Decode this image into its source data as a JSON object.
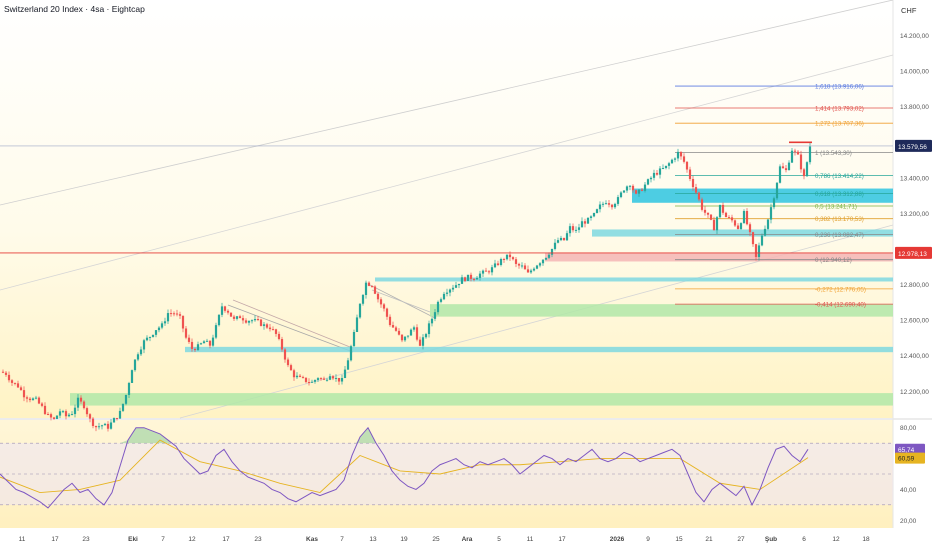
{
  "header": {
    "title": "Switzerland 20 Index · 4sa · Eightcap",
    "currency": "CHF"
  },
  "price_panel": {
    "y_ticks": [
      "14.200,00",
      "14.000,00",
      "13.800,00",
      "13.600,00",
      "13.400,00",
      "13.200,00",
      "13.000,00",
      "12.800,00",
      "12.600,00",
      "12.400,00",
      "12.200,00"
    ],
    "last_price_label": "13.579,56",
    "red_line_label": "12.978,13",
    "fib_levels": [
      {
        "ratio": "1,618",
        "value": "13.916,06",
        "color": "#5b7be0",
        "text": "1,618 (13.916,06)"
      },
      {
        "ratio": "1,414",
        "value": "13.793,02",
        "color": "#e0504a",
        "text": "1,414 (13.793,02)"
      },
      {
        "ratio": "1,272",
        "value": "13.707,36",
        "color": "#f0a030",
        "text": "1,272 (13.707,36)"
      },
      {
        "ratio": "1",
        "value": "13.543,30",
        "color": "#888888",
        "text": "1 (13.543,30)"
      },
      {
        "ratio": "0,786",
        "value": "13.414,22",
        "color": "#26a69a",
        "text": "0,786 (13.414,22)"
      },
      {
        "ratio": "0,618",
        "value": "13.312,88",
        "color": "#26a69a",
        "text": "0,618 (13.312,88)"
      },
      {
        "ratio": "0,5",
        "value": "13.241,71",
        "color": "#7cb342",
        "text": "0,5 (13.241,71)"
      },
      {
        "ratio": "0,382",
        "value": "13.170,53",
        "color": "#e0a030",
        "text": "0,382 (13.170,53)"
      },
      {
        "ratio": "0,236",
        "value": "13.082,47",
        "color": "#888888",
        "text": "0,236 (13.082,47)"
      },
      {
        "ratio": "0",
        "value": "12.940,12",
        "color": "#888888",
        "text": "0 (12.940,12)"
      },
      {
        "ratio": "-0,272",
        "value": "12.776,05",
        "color": "#f0a030",
        "text": "-0,272 (12.776,05)"
      },
      {
        "ratio": "-0,414",
        "value": "12.690,40",
        "color": "#e0504a",
        "text": "-0,414 (12.690,40)"
      }
    ]
  },
  "rsi_panel": {
    "y_ticks": [
      "80,00",
      "60,00",
      "40,00",
      "20,00"
    ],
    "rsi_value": "65,74",
    "ma_value": "60,59"
  },
  "x_axis": {
    "labels": [
      "11",
      "17",
      "23",
      "Eki",
      "7",
      "12",
      "17",
      "23",
      "Kas",
      "7",
      "13",
      "19",
      "25",
      "Ara",
      "5",
      "11",
      "17",
      "2026",
      "9",
      "15",
      "21",
      "27",
      "Şub",
      "6",
      "12",
      "18"
    ]
  },
  "colors": {
    "up": "#26a69a",
    "down": "#ef5350",
    "rsi": "#7e57c2",
    "rsi_ma": "#e6b422",
    "support_zone": "#b2e8a8",
    "teal_zone": "#7fd8e0",
    "cyan_zone": "#2ec4e0",
    "red_line": "#e53935"
  },
  "chart_data": [
    {
      "type": "candlestick",
      "title": "Switzerland 20 Index · 4sa · Eightcap",
      "currency": "CHF",
      "ylim": [
        12050,
        14400
      ],
      "x_labels": [
        "11",
        "17",
        "23",
        "Eki",
        "7",
        "12",
        "17",
        "23",
        "Kas",
        "7",
        "13",
        "19",
        "25",
        "Ara",
        "5",
        "11",
        "17",
        "2026",
        "9",
        "15",
        "21",
        "27",
        "Şub",
        "6",
        "12",
        "18"
      ],
      "price_path": [
        [
          0,
          12310
        ],
        [
          6,
          12300
        ],
        [
          12,
          12250
        ],
        [
          18,
          12230
        ],
        [
          24,
          12180
        ],
        [
          30,
          12160
        ],
        [
          36,
          12150
        ],
        [
          42,
          12110
        ],
        [
          48,
          12060
        ],
        [
          54,
          12040
        ],
        [
          60,
          12090
        ],
        [
          66,
          12060
        ],
        [
          72,
          12080
        ],
        [
          78,
          12150
        ],
        [
          84,
          12120
        ],
        [
          90,
          12040
        ],
        [
          96,
          12000
        ],
        [
          102,
          12010
        ],
        [
          108,
          12000
        ],
        [
          114,
          12040
        ],
        [
          120,
          12080
        ],
        [
          126,
          12180
        ],
        [
          132,
          12330
        ],
        [
          138,
          12420
        ],
        [
          144,
          12480
        ],
        [
          150,
          12510
        ],
        [
          156,
          12550
        ],
        [
          162,
          12570
        ],
        [
          168,
          12640
        ],
        [
          174,
          12640
        ],
        [
          180,
          12610
        ],
        [
          186,
          12500
        ],
        [
          192,
          12440
        ],
        [
          198,
          12450
        ],
        [
          204,
          12480
        ],
        [
          210,
          12460
        ],
        [
          216,
          12560
        ],
        [
          222,
          12680
        ],
        [
          228,
          12650
        ],
        [
          234,
          12600
        ],
        [
          240,
          12620
        ],
        [
          246,
          12600
        ],
        [
          252,
          12600
        ],
        [
          258,
          12590
        ],
        [
          264,
          12570
        ],
        [
          270,
          12560
        ],
        [
          276,
          12520
        ],
        [
          282,
          12440
        ],
        [
          288,
          12340
        ],
        [
          294,
          12290
        ],
        [
          300,
          12270
        ],
        [
          306,
          12260
        ],
        [
          312,
          12250
        ],
        [
          318,
          12280
        ],
        [
          324,
          12260
        ],
        [
          330,
          12300
        ],
        [
          336,
          12270
        ],
        [
          342,
          12260
        ],
        [
          348,
          12380
        ],
        [
          354,
          12520
        ],
        [
          360,
          12700
        ],
        [
          366,
          12810
        ],
        [
          372,
          12800
        ],
        [
          378,
          12720
        ],
        [
          384,
          12660
        ],
        [
          390,
          12580
        ],
        [
          396,
          12540
        ],
        [
          402,
          12480
        ],
        [
          408,
          12520
        ],
        [
          414,
          12560
        ],
        [
          420,
          12450
        ],
        [
          426,
          12530
        ],
        [
          432,
          12610
        ],
        [
          438,
          12700
        ],
        [
          444,
          12760
        ],
        [
          450,
          12780
        ],
        [
          456,
          12800
        ],
        [
          462,
          12830
        ],
        [
          468,
          12840
        ],
        [
          474,
          12840
        ],
        [
          480,
          12860
        ],
        [
          486,
          12870
        ],
        [
          492,
          12890
        ],
        [
          498,
          12920
        ],
        [
          504,
          12950
        ],
        [
          510,
          12960
        ],
        [
          516,
          12910
        ],
        [
          522,
          12900
        ],
        [
          528,
          12860
        ],
        [
          534,
          12900
        ],
        [
          540,
          12930
        ],
        [
          546,
          12960
        ],
        [
          552,
          13000
        ],
        [
          558,
          13050
        ],
        [
          564,
          13050
        ],
        [
          570,
          13120
        ],
        [
          576,
          13100
        ],
        [
          582,
          13150
        ],
        [
          588,
          13160
        ],
        [
          594,
          13190
        ],
        [
          600,
          13240
        ],
        [
          606,
          13270
        ],
        [
          612,
          13250
        ],
        [
          618,
          13280
        ],
        [
          624,
          13340
        ],
        [
          630,
          13370
        ],
        [
          636,
          13300
        ],
        [
          642,
          13340
        ],
        [
          648,
          13380
        ],
        [
          654,
          13420
        ],
        [
          660,
          13440
        ],
        [
          666,
          13460
        ],
        [
          672,
          13500
        ],
        [
          678,
          13540
        ],
        [
          684,
          13490
        ],
        [
          690,
          13400
        ],
        [
          696,
          13320
        ],
        [
          702,
          13230
        ],
        [
          708,
          13180
        ],
        [
          714,
          13120
        ],
        [
          720,
          13240
        ],
        [
          726,
          13180
        ],
        [
          732,
          13160
        ],
        [
          738,
          13120
        ],
        [
          744,
          13200
        ],
        [
          750,
          13080
        ],
        [
          756,
          12950
        ],
        [
          762,
          13080
        ],
        [
          768,
          13170
        ],
        [
          774,
          13300
        ],
        [
          780,
          13460
        ],
        [
          786,
          13440
        ],
        [
          792,
          13560
        ],
        [
          798,
          13520
        ],
        [
          804,
          13400
        ],
        [
          810,
          13579
        ]
      ],
      "overlays": {
        "last_price": 13579.56,
        "red_horizontal_line": 12978.13,
        "zones": [
          {
            "from": 13260,
            "to": 13340,
            "color": "cyan"
          },
          {
            "from": 13070,
            "to": 13110,
            "color": "teal"
          },
          {
            "from": 12930,
            "to": 12980,
            "color": "red"
          },
          {
            "from": 12820,
            "to": 12840,
            "color": "teal"
          },
          {
            "from": 12620,
            "to": 12690,
            "color": "green"
          },
          {
            "from": 12420,
            "to": 12450,
            "color": "teal"
          },
          {
            "from": 12120,
            "to": 12190,
            "color": "green"
          }
        ],
        "fibonacci": [
          {
            "ratio": 1.618,
            "value": 13916.06
          },
          {
            "ratio": 1.414,
            "value": 13793.02
          },
          {
            "ratio": 1.272,
            "value": 13707.36
          },
          {
            "ratio": 1,
            "value": 13543.3
          },
          {
            "ratio": 0.786,
            "value": 13414.22
          },
          {
            "ratio": 0.618,
            "value": 13312.88
          },
          {
            "ratio": 0.5,
            "value": 13241.71
          },
          {
            "ratio": 0.382,
            "value": 13170.53
          },
          {
            "ratio": 0.236,
            "value": 13082.47
          },
          {
            "ratio": 0,
            "value": 12940.12
          },
          {
            "ratio": -0.272,
            "value": 12776.05
          },
          {
            "ratio": -0.414,
            "value": 12690.4
          }
        ]
      }
    },
    {
      "type": "line",
      "ylim": [
        15,
        85
      ],
      "y_ticks": [
        80,
        60,
        40,
        20
      ],
      "bands": {
        "upper": 70,
        "middle": 50,
        "lower": 30
      },
      "last_value": 65.74,
      "ma_last_value": 60.59,
      "rsi_path": [
        [
          0,
          50
        ],
        [
          8,
          45
        ],
        [
          16,
          40
        ],
        [
          24,
          38
        ],
        [
          32,
          35
        ],
        [
          40,
          32
        ],
        [
          48,
          28
        ],
        [
          56,
          34
        ],
        [
          64,
          40
        ],
        [
          72,
          44
        ],
        [
          80,
          38
        ],
        [
          88,
          40
        ],
        [
          96,
          34
        ],
        [
          104,
          30
        ],
        [
          112,
          38
        ],
        [
          120,
          55
        ],
        [
          128,
          72
        ],
        [
          136,
          80
        ],
        [
          144,
          80
        ],
        [
          152,
          78
        ],
        [
          160,
          76
        ],
        [
          168,
          72
        ],
        [
          176,
          68
        ],
        [
          184,
          60
        ],
        [
          192,
          55
        ],
        [
          200,
          50
        ],
        [
          208,
          52
        ],
        [
          216,
          62
        ],
        [
          224,
          66
        ],
        [
          232,
          58
        ],
        [
          240,
          52
        ],
        [
          248,
          48
        ],
        [
          256,
          46
        ],
        [
          264,
          44
        ],
        [
          272,
          40
        ],
        [
          280,
          38
        ],
        [
          288,
          34
        ],
        [
          296,
          32
        ],
        [
          304,
          35
        ],
        [
          312,
          38
        ],
        [
          320,
          36
        ],
        [
          328,
          38
        ],
        [
          336,
          40
        ],
        [
          344,
          46
        ],
        [
          352,
          62
        ],
        [
          360,
          74
        ],
        [
          368,
          80
        ],
        [
          376,
          70
        ],
        [
          384,
          62
        ],
        [
          392,
          52
        ],
        [
          400,
          46
        ],
        [
          408,
          42
        ],
        [
          416,
          40
        ],
        [
          424,
          44
        ],
        [
          432,
          52
        ],
        [
          440,
          56
        ],
        [
          448,
          58
        ],
        [
          456,
          60
        ],
        [
          464,
          56
        ],
        [
          472,
          54
        ],
        [
          480,
          58
        ],
        [
          488,
          56
        ],
        [
          496,
          58
        ],
        [
          504,
          60
        ],
        [
          512,
          56
        ],
        [
          520,
          50
        ],
        [
          528,
          54
        ],
        [
          536,
          58
        ],
        [
          544,
          62
        ],
        [
          552,
          60
        ],
        [
          560,
          56
        ],
        [
          568,
          60
        ],
        [
          576,
          58
        ],
        [
          584,
          62
        ],
        [
          592,
          66
        ],
        [
          600,
          60
        ],
        [
          608,
          58
        ],
        [
          616,
          60
        ],
        [
          624,
          64
        ],
        [
          632,
          62
        ],
        [
          640,
          58
        ],
        [
          648,
          60
        ],
        [
          656,
          62
        ],
        [
          664,
          64
        ],
        [
          672,
          66
        ],
        [
          680,
          62
        ],
        [
          688,
          50
        ],
        [
          696,
          38
        ],
        [
          704,
          32
        ],
        [
          712,
          40
        ],
        [
          720,
          44
        ],
        [
          728,
          40
        ],
        [
          736,
          36
        ],
        [
          744,
          42
        ],
        [
          752,
          30
        ],
        [
          760,
          40
        ],
        [
          768,
          54
        ],
        [
          776,
          66
        ],
        [
          784,
          68
        ],
        [
          792,
          62
        ],
        [
          800,
          58
        ],
        [
          808,
          66
        ]
      ],
      "ma_path": [
        [
          0,
          48
        ],
        [
          40,
          38
        ],
        [
          80,
          40
        ],
        [
          120,
          46
        ],
        [
          160,
          72
        ],
        [
          200,
          58
        ],
        [
          240,
          52
        ],
        [
          280,
          44
        ],
        [
          320,
          38
        ],
        [
          360,
          62
        ],
        [
          400,
          52
        ],
        [
          440,
          50
        ],
        [
          480,
          56
        ],
        [
          520,
          56
        ],
        [
          560,
          58
        ],
        [
          600,
          60
        ],
        [
          640,
          60
        ],
        [
          680,
          60
        ],
        [
          720,
          44
        ],
        [
          760,
          40
        ],
        [
          808,
          60.59
        ]
      ]
    }
  ]
}
